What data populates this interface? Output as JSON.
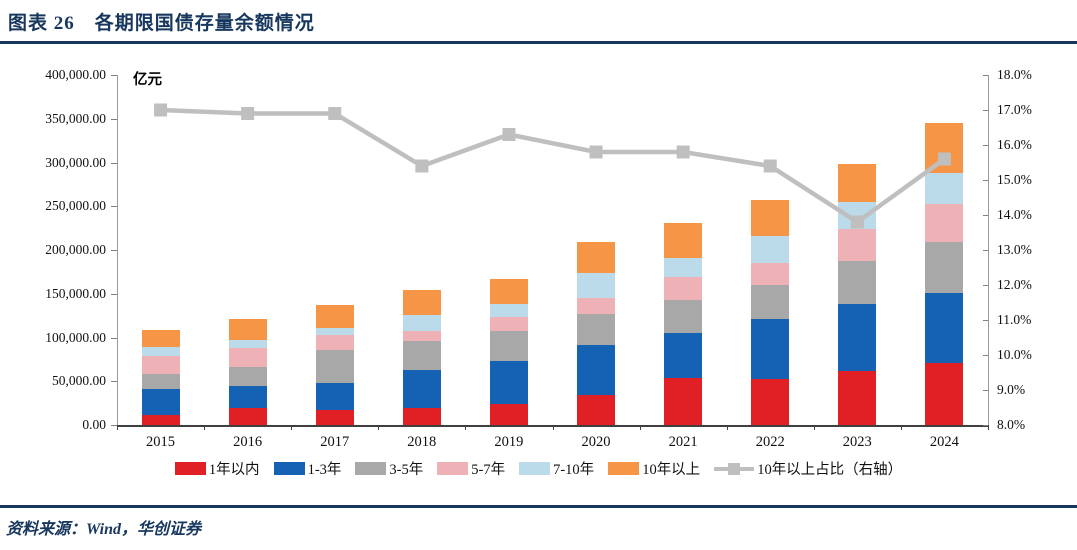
{
  "header": {
    "title": "图表 26　各期限国债存量余额情况"
  },
  "footer": {
    "source_label": "资料来源：Wind，华创证券"
  },
  "chart_data": {
    "type": "bar",
    "subtype": "stacked-bar-with-line",
    "title": "各期限国债存量余额情况",
    "unit_label": "亿元",
    "categories": [
      "2015",
      "2016",
      "2017",
      "2018",
      "2019",
      "2020",
      "2021",
      "2022",
      "2023",
      "2024"
    ],
    "stack_series": [
      {
        "name": "1年以内",
        "color": "#e02024",
        "values": [
          11000,
          19000,
          17000,
          19000,
          23500,
          34000,
          54000,
          53000,
          62000,
          71000
        ]
      },
      {
        "name": "1-3年",
        "color": "#1562b5",
        "values": [
          30500,
          26000,
          30500,
          44000,
          50000,
          58000,
          51000,
          68500,
          76000,
          79500
        ]
      },
      {
        "name": "3-5年",
        "color": "#a8a8a8",
        "values": [
          17000,
          21000,
          38000,
          32500,
          34500,
          34500,
          38000,
          39000,
          49500,
          59000
        ]
      },
      {
        "name": "5-7年",
        "color": "#eeb2b6",
        "values": [
          20500,
          21500,
          17000,
          12500,
          16000,
          19000,
          26000,
          24500,
          36500,
          43000
        ]
      },
      {
        "name": "7-10年",
        "color": "#bcdbea",
        "values": [
          10500,
          9500,
          8500,
          18000,
          14500,
          28000,
          22000,
          30500,
          30500,
          35500
        ]
      },
      {
        "name": "10年以上",
        "color": "#f69546",
        "values": [
          19000,
          24000,
          26000,
          28500,
          28500,
          35500,
          40000,
          42000,
          44000,
          57500
        ]
      }
    ],
    "line_series": {
      "name": "10年以上占比（右轴）",
      "color": "#bfbfbf",
      "axis": "right",
      "values_percent": [
        17.0,
        16.9,
        16.9,
        15.4,
        16.3,
        15.8,
        15.8,
        15.4,
        13.8,
        15.6
      ]
    },
    "left_axis": {
      "min": 0,
      "max": 400000,
      "step": 50000,
      "tick_labels": [
        "0.00",
        "50,000.00",
        "100,000.00",
        "150,000.00",
        "200,000.00",
        "250,000.00",
        "300,000.00",
        "350,000.00",
        "400,000.00"
      ]
    },
    "right_axis": {
      "min": 8,
      "max": 18,
      "step": 1,
      "tick_labels": [
        "8.0%",
        "9.0%",
        "10.0%",
        "11.0%",
        "12.0%",
        "13.0%",
        "14.0%",
        "15.0%",
        "16.0%",
        "17.0%",
        "18.0%"
      ]
    },
    "legend_position": "bottom",
    "grid": false
  }
}
